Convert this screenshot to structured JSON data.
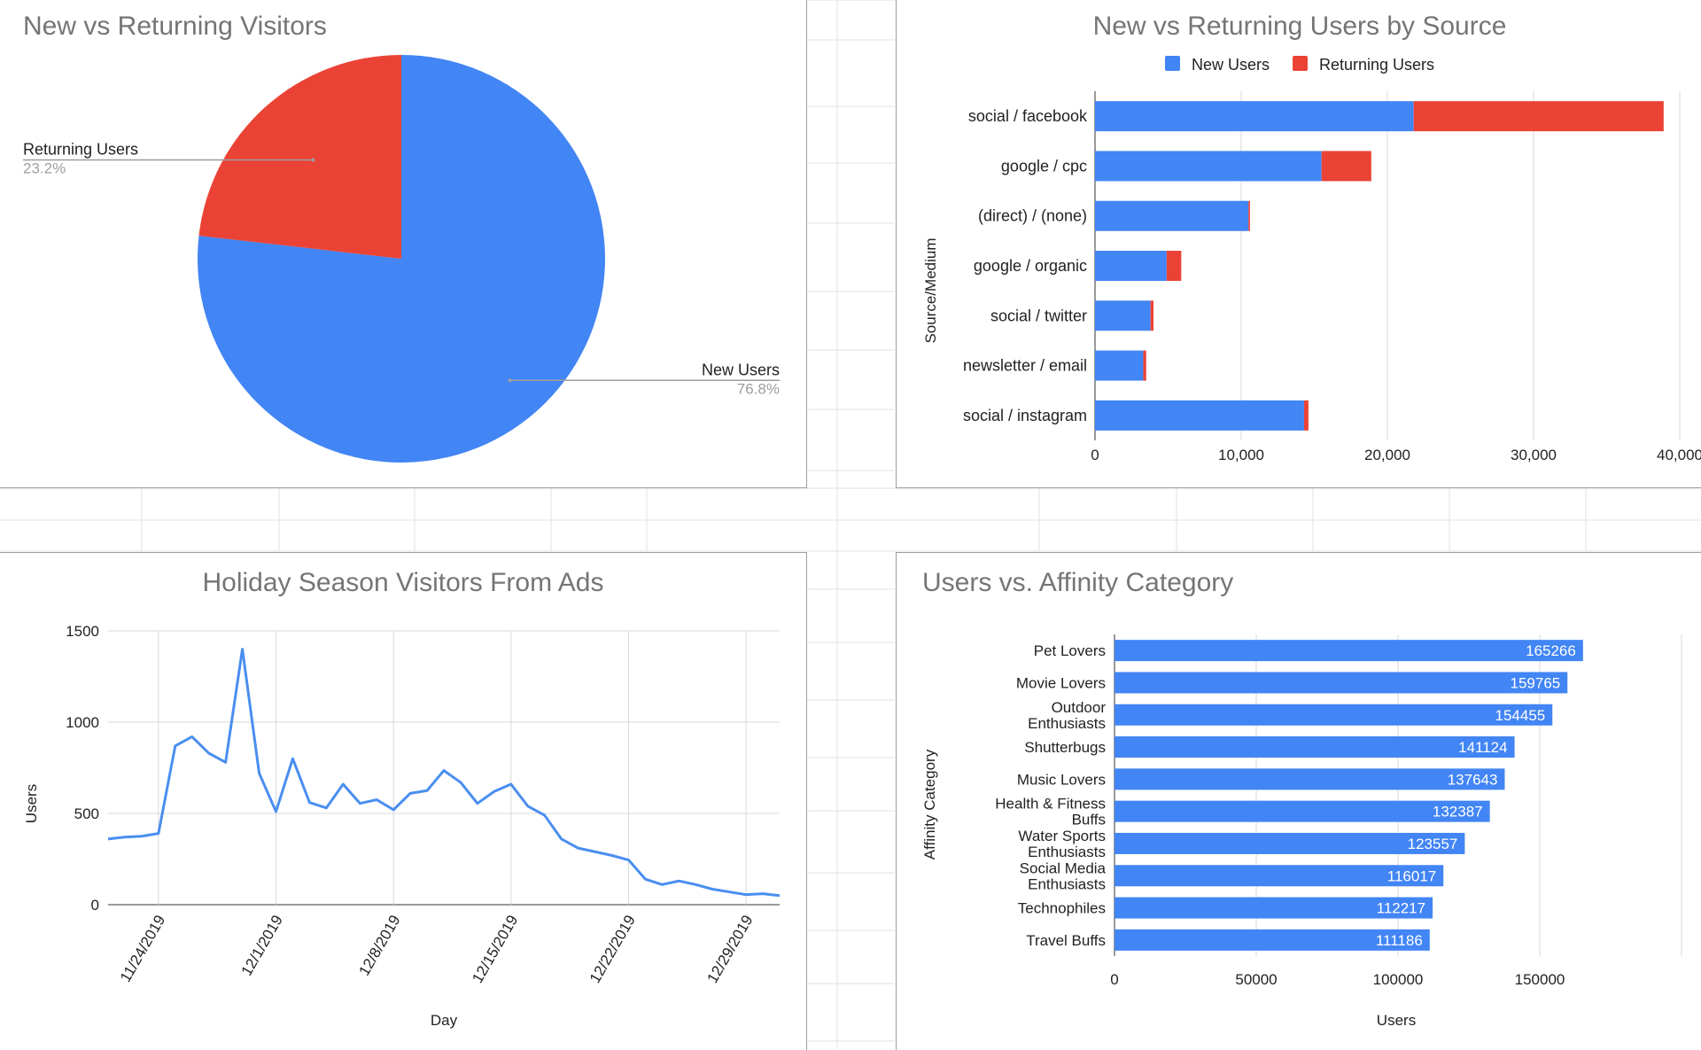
{
  "colors": {
    "new_users": "#4285f4",
    "returning_users": "#ea4335",
    "line": "#4a8ef0",
    "affinity_bar": "#4285f4",
    "gridline": "#d9d9d9",
    "axis": "#333333"
  },
  "chart_data": [
    {
      "type": "pie",
      "title": "New vs Returning Visitors",
      "slices": [
        {
          "label": "New Users",
          "value": 76.8,
          "display": "76.8%"
        },
        {
          "label": "Returning Users",
          "value": 23.2,
          "display": "23.2%"
        }
      ]
    },
    {
      "type": "bar",
      "orientation": "horizontal",
      "stacked": true,
      "title": "New vs Returning Users by Source",
      "ylabel": "Source/Medium",
      "xlabel": "",
      "legend_position": "top",
      "categories": [
        "social / facebook",
        "google / cpc",
        "(direct) / (none)",
        "google / organic",
        "social / twitter",
        "newsletter / email",
        "social / instagram"
      ],
      "series": [
        {
          "name": "New Users",
          "values": [
            21800,
            15500,
            10500,
            4900,
            3800,
            3300,
            14300
          ]
        },
        {
          "name": "Returning Users",
          "values": [
            17100,
            3400,
            100,
            1000,
            200,
            200,
            300
          ]
        }
      ],
      "xlim": [
        0,
        40000
      ],
      "xticks": [
        "0",
        "10,000",
        "20,000",
        "30,000",
        "40,000"
      ],
      "grid": true
    },
    {
      "type": "line",
      "title": "Holiday Season Visitors From Ads",
      "xlabel": "Day",
      "ylabel": "Users",
      "x": [
        "11/21/2019",
        "11/22/2019",
        "11/23/2019",
        "11/24/2019",
        "11/25/2019",
        "11/26/2019",
        "11/27/2019",
        "11/28/2019",
        "11/29/2019",
        "11/30/2019",
        "12/1/2019",
        "12/2/2019",
        "12/3/2019",
        "12/4/2019",
        "12/5/2019",
        "12/6/2019",
        "12/7/2019",
        "12/8/2019",
        "12/9/2019",
        "12/10/2019",
        "12/11/2019",
        "12/12/2019",
        "12/13/2019",
        "12/14/2019",
        "12/15/2019",
        "12/16/2019",
        "12/17/2019",
        "12/18/2019",
        "12/19/2019",
        "12/20/2019",
        "12/21/2019",
        "12/22/2019",
        "12/23/2019",
        "12/24/2019",
        "12/25/2019",
        "12/26/2019",
        "12/27/2019",
        "12/28/2019",
        "12/29/2019",
        "12/30/2019",
        "12/31/2019"
      ],
      "y": [
        360,
        370,
        375,
        390,
        870,
        920,
        830,
        780,
        1400,
        720,
        510,
        800,
        560,
        530,
        660,
        555,
        575,
        520,
        610,
        625,
        735,
        670,
        555,
        620,
        660,
        540,
        490,
        360,
        310,
        290,
        270,
        245,
        140,
        110,
        130,
        110,
        85,
        70,
        55,
        60,
        50
      ],
      "xticks": [
        "11/24/2019",
        "12/1/2019",
        "12/8/2019",
        "12/15/2019",
        "12/22/2019",
        "12/29/2019"
      ],
      "yticks": [
        "0",
        "500",
        "1000",
        "1500"
      ],
      "ylim": [
        0,
        1500
      ],
      "grid": true
    },
    {
      "type": "bar",
      "orientation": "horizontal",
      "title": "Users vs. Affinity Category",
      "xlabel": "Users",
      "ylabel": "Affinity Category",
      "categories": [
        [
          "Pet Lovers"
        ],
        [
          "Movie Lovers"
        ],
        [
          "Outdoor",
          "Enthusiasts"
        ],
        [
          "Shutterbugs"
        ],
        [
          "Music Lovers"
        ],
        [
          "Health & Fitness",
          "Buffs"
        ],
        [
          "Water Sports",
          "Enthusiasts"
        ],
        [
          "Social Media",
          "Enthusiasts"
        ],
        [
          "Technophiles"
        ],
        [
          "Travel Buffs"
        ]
      ],
      "values": [
        165266,
        159765,
        154455,
        141124,
        137643,
        132387,
        123557,
        116017,
        112217,
        111186
      ],
      "xlim": [
        0,
        200000
      ],
      "xticks": [
        "0",
        "50000",
        "100000",
        "150000"
      ],
      "grid": true
    }
  ]
}
